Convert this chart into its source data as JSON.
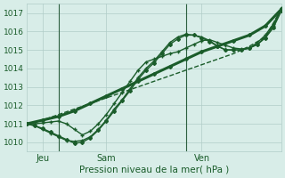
{
  "title": "",
  "xlabel": "Pression niveau de la mer( hPa )",
  "ylabel": "",
  "bg_color": "#d8ede8",
  "grid_color": "#b0ccc8",
  "line_color": "#1a5c2a",
  "ylim": [
    1009.5,
    1017.5
  ],
  "xlim": [
    0,
    96
  ],
  "xtick_positions": [
    6,
    30,
    66
  ],
  "xtick_labels": [
    "Jeu",
    "Sam",
    "Ven"
  ],
  "ytick_positions": [
    1010,
    1011,
    1012,
    1013,
    1014,
    1015,
    1016,
    1017
  ],
  "ytick_labels": [
    "1010",
    "1011",
    "1012",
    "1013",
    "1014",
    "1015",
    "1016",
    "1017"
  ],
  "series": [
    {
      "x": [
        0,
        6,
        12,
        18,
        24,
        30,
        36,
        42,
        48,
        54,
        60,
        66,
        72,
        78,
        84,
        90,
        96
      ],
      "y": [
        1011.0,
        1011.2,
        1011.5,
        1011.8,
        1012.1,
        1012.4,
        1012.7,
        1013.0,
        1013.3,
        1013.6,
        1013.9,
        1014.2,
        1014.5,
        1014.8,
        1015.2,
        1015.7,
        1017.2
      ],
      "marker": null,
      "lw": 1.0,
      "ms": 0,
      "ls": "--"
    },
    {
      "x": [
        0,
        6,
        12,
        18,
        24,
        30,
        36,
        42,
        48,
        54,
        60,
        66,
        72,
        78,
        84,
        90,
        96
      ],
      "y": [
        1011.0,
        1011.2,
        1011.4,
        1011.7,
        1012.1,
        1012.5,
        1012.9,
        1013.3,
        1013.7,
        1014.1,
        1014.5,
        1014.9,
        1015.2,
        1015.5,
        1015.8,
        1016.3,
        1017.2
      ],
      "marker": "D",
      "lw": 2.2,
      "ms": 2.0,
      "ls": "-"
    },
    {
      "x": [
        0,
        3,
        6,
        9,
        12,
        15,
        18,
        21,
        24,
        27,
        30,
        33,
        36,
        39,
        42,
        45,
        48,
        51,
        54,
        57,
        60,
        63,
        66,
        69,
        72,
        75,
        78,
        81,
        84,
        87,
        90,
        93,
        96
      ],
      "y": [
        1011.0,
        1010.9,
        1010.7,
        1010.5,
        1010.3,
        1010.1,
        1010.05,
        1010.1,
        1010.3,
        1010.7,
        1011.2,
        1011.8,
        1012.3,
        1012.9,
        1013.5,
        1014.0,
        1014.4,
        1014.9,
        1015.4,
        1015.7,
        1015.85,
        1015.8,
        1015.7,
        1015.5,
        1015.2,
        1015.0,
        1015.0,
        1015.0,
        1015.1,
        1015.3,
        1015.7,
        1016.3,
        1017.2
      ],
      "marker": "+",
      "lw": 1.0,
      "ms": 3.5,
      "ls": "-"
    },
    {
      "x": [
        0,
        3,
        6,
        9,
        12,
        15,
        18,
        21,
        24,
        27,
        30,
        33,
        36,
        39,
        42,
        45,
        48,
        51,
        54,
        57,
        60,
        63,
        66,
        69,
        72,
        75,
        78,
        81,
        84,
        87,
        90,
        93,
        96
      ],
      "y": [
        1011.0,
        1011.0,
        1011.05,
        1011.1,
        1011.15,
        1011.0,
        1010.7,
        1010.4,
        1010.6,
        1011.0,
        1011.5,
        1012.1,
        1012.7,
        1013.3,
        1013.9,
        1014.35,
        1014.5,
        1014.65,
        1014.8,
        1014.9,
        1015.1,
        1015.3,
        1015.5,
        1015.55,
        1015.4,
        1015.25,
        1015.1,
        1015.05,
        1015.1,
        1015.4,
        1015.8,
        1016.4,
        1017.25
      ],
      "marker": "+",
      "lw": 1.0,
      "ms": 3.5,
      "ls": "-"
    },
    {
      "x": [
        0,
        3,
        6,
        9,
        12,
        15,
        18,
        21,
        24,
        27,
        30,
        33,
        36,
        39,
        42,
        45,
        48,
        51,
        54,
        57,
        60,
        63,
        66,
        69,
        72,
        75,
        78,
        81,
        84,
        87,
        90,
        93,
        96
      ],
      "y": [
        1011.0,
        1010.9,
        1010.75,
        1010.55,
        1010.35,
        1010.15,
        1009.95,
        1010.0,
        1010.25,
        1010.65,
        1011.15,
        1011.7,
        1012.25,
        1012.8,
        1013.4,
        1013.9,
        1014.3,
        1014.8,
        1015.3,
        1015.6,
        1015.8,
        1015.8,
        1015.65,
        1015.45,
        1015.2,
        1015.0,
        1015.0,
        1015.0,
        1015.1,
        1015.3,
        1015.65,
        1016.2,
        1017.1
      ],
      "marker": "D",
      "lw": 1.0,
      "ms": 2.0,
      "ls": "-"
    }
  ],
  "vline_x": [
    12,
    60
  ],
  "vline_color": "#2d6040"
}
